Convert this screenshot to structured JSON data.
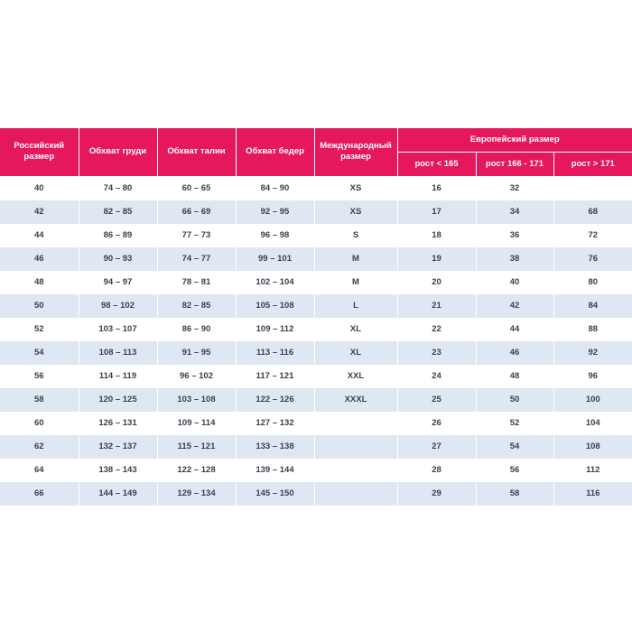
{
  "table": {
    "columns": [
      "Российский размер",
      "Обхват груди",
      "Обхват талии",
      "Обхват бедер",
      "Международный размер"
    ],
    "group": "Европейский размер",
    "subcolumns": [
      "рост < 165",
      "рост 166 - 171",
      "рост > 171"
    ],
    "rows": [
      [
        40,
        "74 – 80",
        "60 – 65",
        "84 – 90",
        "XS",
        16,
        32,
        null
      ],
      [
        42,
        "82 – 85",
        "66 – 69",
        "92 – 95",
        "XS",
        17,
        34,
        68
      ],
      [
        44,
        "86 – 89",
        "77 – 73",
        "96 – 98",
        "S",
        18,
        36,
        72
      ],
      [
        46,
        "90 – 93",
        "74 – 77",
        "99 – 101",
        "M",
        19,
        38,
        76
      ],
      [
        48,
        "94 – 97",
        "78 – 81",
        "102 – 104",
        "M",
        20,
        40,
        80
      ],
      [
        50,
        "98 – 102",
        "82 – 85",
        "105 – 108",
        "L",
        21,
        42,
        84
      ],
      [
        52,
        "103 – 107",
        "86 – 90",
        "109 – 112",
        "XL",
        22,
        44,
        88
      ],
      [
        54,
        "108 – 113",
        "91 – 95",
        "113 – 116",
        "XL",
        23,
        46,
        92
      ],
      [
        56,
        "114 – 119",
        "96 – 102",
        "117 – 121",
        "XXL",
        24,
        48,
        96
      ],
      [
        58,
        "120 – 125",
        "103 – 108",
        "122 – 126",
        "XXXL",
        25,
        50,
        100
      ],
      [
        60,
        "126 – 131",
        "109 – 114",
        "127 – 132",
        null,
        26,
        52,
        104
      ],
      [
        62,
        "132 – 137",
        "115 – 121",
        "133 – 138",
        null,
        27,
        54,
        108
      ],
      [
        64,
        "138 – 143",
        "122 – 128",
        "139 – 144",
        null,
        28,
        56,
        112
      ],
      [
        66,
        "144 – 149",
        "129 – 134",
        "145 – 150",
        null,
        29,
        58,
        116
      ]
    ]
  }
}
